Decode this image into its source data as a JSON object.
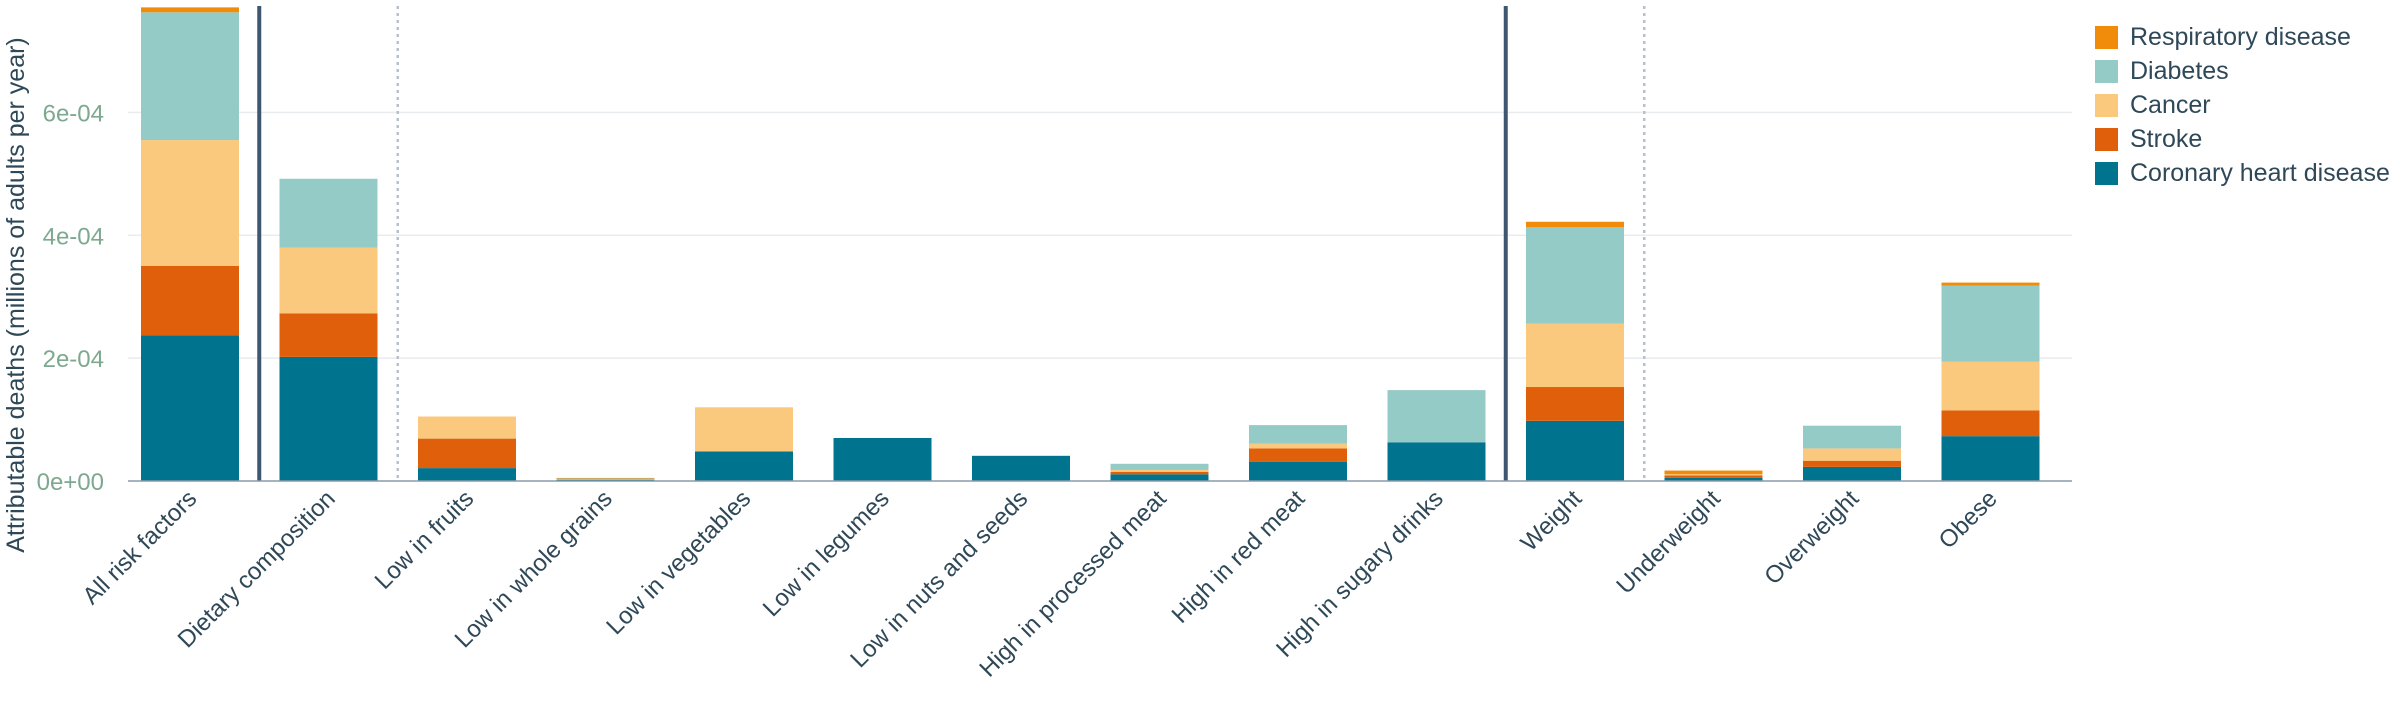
{
  "chart_data": {
    "type": "bar",
    "stacked": true,
    "title": "",
    "xlabel": "",
    "ylabel": "Attributable deaths (millions of adults per year)",
    "ylim": [
      0,
      0.00077
    ],
    "yticks": [
      0,
      0.0002,
      0.0004,
      0.0006
    ],
    "ytick_labels": [
      "0e+00",
      "2e-04",
      "4e-04",
      "6e-04"
    ],
    "grid": true,
    "legend_position": "top-right",
    "categories": [
      "All risk factors",
      "Dietary composition",
      "Low in fruits",
      "Low in whole grains",
      "Low in vegetables",
      "Low in legumes",
      "Low in nuts and seeds",
      "High in processed meat",
      "High in red meat",
      "High in sugary drinks",
      "Weight",
      "Underweight",
      "Overweight",
      "Obese"
    ],
    "series": [
      {
        "name": "Coronary heart disease",
        "color": "#00738f",
        "values": [
          0.000237,
          0.000202,
          2.1e-05,
          2e-06,
          4.8e-05,
          7e-05,
          4.1e-05,
          1.1e-05,
          3.1e-05,
          6.3e-05,
          9.8e-05,
          5e-06,
          2.3e-05,
          7.3e-05
        ]
      },
      {
        "name": "Stroke",
        "color": "#e05f0a",
        "values": [
          0.000113,
          7.1e-05,
          4.8e-05,
          0.0,
          0.0,
          0.0,
          0.0,
          4e-06,
          2.2e-05,
          0.0,
          5.5e-05,
          4e-06,
          1e-05,
          4.2e-05
        ]
      },
      {
        "name": "Cancer",
        "color": "#fbc97d",
        "values": [
          0.000205,
          0.000107,
          3.6e-05,
          0.0,
          7.2e-05,
          0.0,
          0.0,
          3e-06,
          8e-06,
          0.0,
          0.000103,
          2e-06,
          2e-05,
          7.9e-05
        ]
      },
      {
        "name": "Diabetes",
        "color": "#95cbc6",
        "values": [
          0.000208,
          0.000112,
          0.0,
          2e-06,
          0.0,
          0.0,
          0.0,
          1e-05,
          3e-05,
          8.5e-05,
          0.000157,
          0.0,
          3.7e-05,
          0.000124
        ]
      },
      {
        "name": "Respiratory disease",
        "color": "#f18c0b",
        "values": [
          8e-06,
          0.0,
          0.0,
          1e-06,
          0.0,
          0.0,
          0.0,
          0.0,
          0.0,
          0.0,
          9e-06,
          6e-06,
          0.0,
          5e-06
        ]
      }
    ],
    "group_separators": {
      "solid_after": [
        "All risk factors",
        "High in sugary drinks"
      ],
      "dotted_after": [
        "Dietary composition",
        "Weight"
      ]
    },
    "colors": {
      "axis_text": "#7ea88f",
      "label_text": "#2f4858",
      "separator_solid": "#3f5670",
      "separator_dotted": "#b7c0cc",
      "grid": "#e8ecef",
      "axis_line": "#8a9aa8"
    }
  }
}
